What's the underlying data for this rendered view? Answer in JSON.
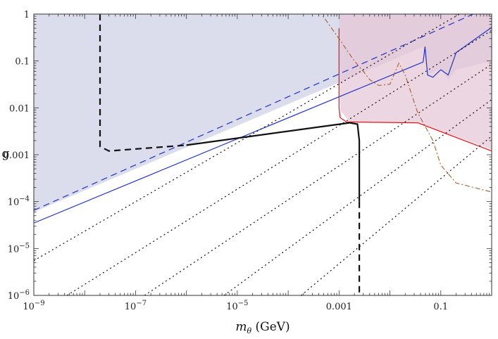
{
  "chart_data": {
    "type": "line",
    "xlabel_main": "m",
    "xlabel_sub": "θ",
    "xlabel_unit": " (GeV)",
    "ylabel": "g",
    "xscale": "log",
    "yscale": "log",
    "xlim": [
      1e-09,
      1
    ],
    "ylim": [
      1e-06,
      1
    ],
    "xticks": [
      {
        "value": 1e-09,
        "base": "10",
        "exp": "−9",
        "text": ""
      },
      {
        "value": 1e-07,
        "base": "10",
        "exp": "−7",
        "text": ""
      },
      {
        "value": 1e-05,
        "base": "10",
        "exp": "−5",
        "text": ""
      },
      {
        "value": 0.001,
        "base": "",
        "exp": "",
        "text": "0.001"
      },
      {
        "value": 0.1,
        "base": "",
        "exp": "",
        "text": "0.1"
      }
    ],
    "yticks": [
      {
        "value": 1,
        "base": "",
        "exp": "",
        "text": "1"
      },
      {
        "value": 0.1,
        "base": "",
        "exp": "",
        "text": "0.1"
      },
      {
        "value": 0.01,
        "base": "",
        "exp": "",
        "text": "0.01"
      },
      {
        "value": 0.001,
        "base": "",
        "exp": "",
        "text": "0.001"
      },
      {
        "value": 0.0001,
        "base": "10",
        "exp": "−4",
        "text": ""
      },
      {
        "value": 1e-05,
        "base": "10",
        "exp": "−5",
        "text": ""
      },
      {
        "value": 1e-06,
        "base": "10",
        "exp": "−6",
        "text": ""
      }
    ],
    "regions": [
      {
        "id": "blue-region",
        "fill": "#cfd0e6",
        "points": [
          [
            1e-09,
            1
          ],
          [
            1,
            1
          ],
          [
            1,
            0.1
          ],
          [
            0.2,
            0.065
          ],
          [
            0.14,
            0.04
          ],
          [
            0.1,
            0.07
          ],
          [
            0.055,
            0.05
          ],
          [
            0.045,
            0.2
          ],
          [
            1e-09,
            6e-05
          ]
        ]
      },
      {
        "id": "red-region",
        "fill": "#e6c8d8",
        "points": [
          [
            0.001,
            1
          ],
          [
            1,
            1
          ],
          [
            1,
            0.0013
          ],
          [
            0.035,
            0.0048
          ],
          [
            0.0016,
            0.005
          ],
          [
            0.00105,
            0.009
          ],
          [
            0.001,
            0.05
          ]
        ]
      }
    ],
    "series": [
      {
        "id": "blue-solid",
        "color": "#2233cc",
        "width": 1.2,
        "dash": "",
        "points": [
          [
            1e-09,
            3.5e-05
          ],
          [
            0.045,
            0.095
          ],
          [
            0.049,
            0.2
          ],
          [
            0.055,
            0.05
          ],
          [
            0.07,
            0.045
          ],
          [
            0.1,
            0.065
          ],
          [
            0.14,
            0.05
          ],
          [
            0.2,
            0.15
          ],
          [
            1,
            0.52
          ]
        ]
      },
      {
        "id": "blue-dashed",
        "color": "#2233cc",
        "width": 1.2,
        "dash": "9 6",
        "points": [
          [
            1e-09,
            6.5e-05
          ],
          [
            1,
            1.5
          ]
        ]
      },
      {
        "id": "red-solid",
        "color": "#e8141a",
        "width": 1.2,
        "dash": "",
        "points": [
          [
            0.001,
            0.5
          ],
          [
            0.001,
            0.01
          ],
          [
            0.00105,
            0.0062
          ],
          [
            0.0014,
            0.005
          ],
          [
            0.035,
            0.0048
          ],
          [
            1,
            0.0012
          ]
        ]
      },
      {
        "id": "brown-dashdot",
        "color": "#a0622a",
        "width": 1.1,
        "dash": "7 3 2 3",
        "points": [
          [
            0.0004,
            1.2
          ],
          [
            0.001,
            0.3
          ],
          [
            0.002,
            0.1
          ],
          [
            0.003,
            0.06
          ],
          [
            0.004,
            0.04
          ],
          [
            0.006,
            0.03
          ],
          [
            0.01,
            0.032
          ],
          [
            0.015,
            0.09
          ],
          [
            0.02,
            0.05
          ],
          [
            0.035,
            0.008
          ],
          [
            0.07,
            0.002
          ],
          [
            0.1,
            0.0006
          ],
          [
            0.2,
            0.00025
          ],
          [
            1,
            0.00016
          ]
        ]
      },
      {
        "id": "black-solid",
        "color": "#111111",
        "width": 2.2,
        "dash": "",
        "points": [
          [
            1e-06,
            0.0016
          ],
          [
            0.0016,
            0.0048
          ],
          [
            0.0023,
            0.0045
          ],
          [
            0.0025,
            0.002
          ],
          [
            0.0025,
            0.0001
          ]
        ]
      },
      {
        "id": "black-dashed-left",
        "color": "#111111",
        "width": 2.2,
        "dash": "9 6",
        "points": [
          [
            2e-08,
            1
          ],
          [
            2e-08,
            0.0015
          ],
          [
            3e-08,
            0.0012
          ],
          [
            1e-06,
            0.0016
          ]
        ]
      },
      {
        "id": "black-dashed-right",
        "color": "#111111",
        "width": 2.2,
        "dash": "9 6",
        "points": [
          [
            0.0025,
            0.0001
          ],
          [
            0.0025,
            1e-06
          ]
        ]
      },
      {
        "id": "dotted-1",
        "color": "#111111",
        "width": 1.2,
        "dash": "2 4",
        "points": [
          [
            1e-09,
            5.5e-06
          ],
          [
            1,
            2.5
          ]
        ]
      },
      {
        "id": "dotted-2",
        "color": "#111111",
        "width": 1.2,
        "dash": "2 4",
        "points": [
          [
            4.5e-09,
            1e-06
          ],
          [
            1,
            0.45
          ]
        ]
      },
      {
        "id": "dotted-3",
        "color": "#111111",
        "width": 1.2,
        "dash": "2 4",
        "points": [
          [
            1.5e-07,
            1e-06
          ],
          [
            1,
            0.085
          ]
        ]
      },
      {
        "id": "dotted-4",
        "color": "#111111",
        "width": 1.2,
        "dash": "2 4",
        "points": [
          [
            5.5e-06,
            1e-06
          ],
          [
            1,
            0.015
          ]
        ]
      },
      {
        "id": "dotted-5",
        "color": "#111111",
        "width": 1.2,
        "dash": "2 4",
        "points": [
          [
            0.00018,
            1e-06
          ],
          [
            1,
            0.0025
          ]
        ]
      }
    ]
  }
}
